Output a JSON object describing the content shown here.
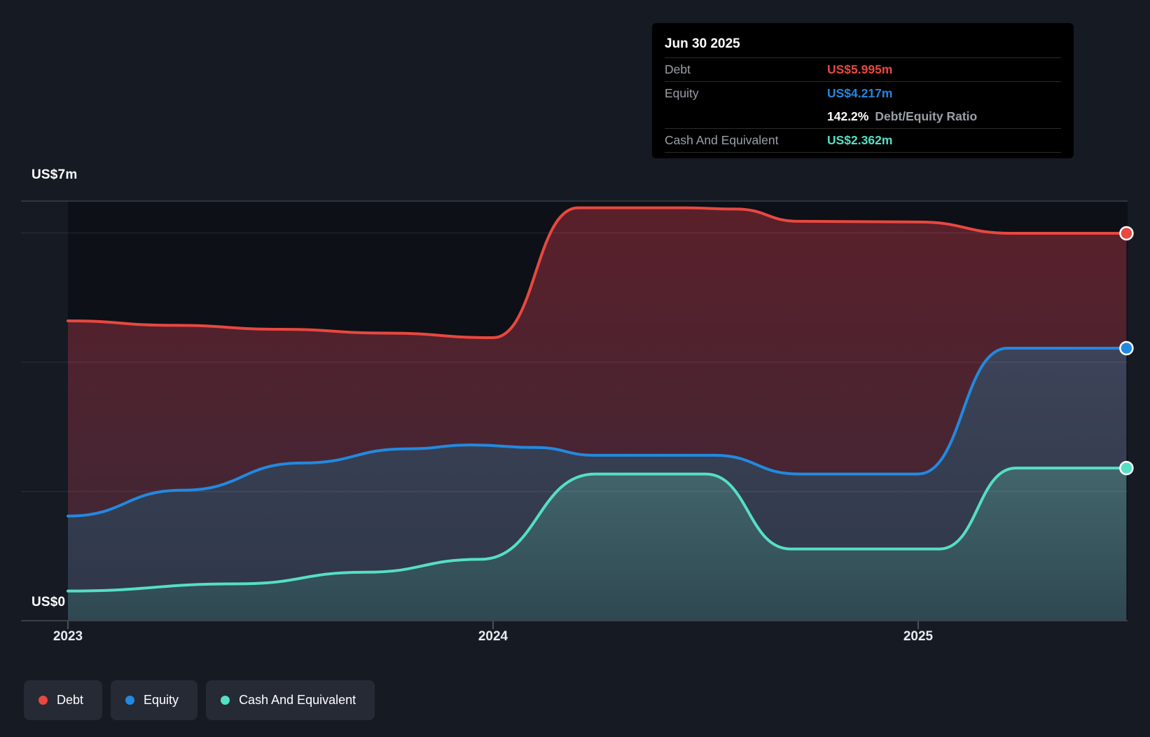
{
  "tooltip": {
    "date": "Jun 30 2025",
    "debt_label": "Debt",
    "debt_value": "US$5.995m",
    "equity_label": "Equity",
    "equity_value": "US$4.217m",
    "ratio_value": "142.2%",
    "ratio_label": "Debt/Equity Ratio",
    "cash_label": "Cash And Equivalent",
    "cash_value": "US$2.362m"
  },
  "y_axis": {
    "top_label": "US$7m",
    "bottom_label": "US$0"
  },
  "x_axis": {
    "ticks": [
      "2023",
      "2024",
      "2025"
    ]
  },
  "legend": [
    {
      "label": "Debt",
      "color": "#e8483f"
    },
    {
      "label": "Equity",
      "color": "#2389e0"
    },
    {
      "label": "Cash And Equivalent",
      "color": "#55dfc5"
    }
  ],
  "colors": {
    "page_bg": "#151a23",
    "plot_bg": "#0d1016",
    "grid": "rgba(255,255,255,0.07)",
    "frame": "#3a4049",
    "tick": "#4a505c",
    "debt": "#e8483f",
    "equity": "#2389e0",
    "cash": "#55dfc5",
    "marker_stroke": "#ffffff"
  },
  "chart_data": {
    "type": "area",
    "title": "",
    "x_unit": "year",
    "x_range": [
      2023.0,
      2025.49
    ],
    "x_tick_values": [
      2023,
      2024,
      2025
    ],
    "y_unit": "US$ millions",
    "ylim": [
      0,
      7
    ],
    "gridline_values_m": [
      2,
      4,
      6
    ],
    "grid": true,
    "legend_position": "bottom-left",
    "last_point_date": "Jun 30 2025",
    "debt_equity_ratio_pct": 142.2,
    "series": [
      {
        "name": "Debt",
        "color": "#e8483f",
        "band_top": "#5a202a",
        "band_bottom": "#432634",
        "last_value_m": 5.995,
        "points": [
          [
            2023.0,
            4.64
          ],
          [
            2023.25,
            4.57
          ],
          [
            2023.5,
            4.51
          ],
          [
            2023.75,
            4.45
          ],
          [
            2024.0,
            4.38
          ],
          [
            2024.2,
            6.39
          ],
          [
            2024.45,
            6.39
          ],
          [
            2024.57,
            6.37
          ],
          [
            2024.72,
            6.18
          ],
          [
            2025.0,
            6.17
          ],
          [
            2025.22,
            5.995
          ],
          [
            2025.49,
            5.995
          ]
        ]
      },
      {
        "name": "Equity",
        "color": "#2389e0",
        "band_top": "#3d4459",
        "band_bottom": "#2e3648",
        "last_value_m": 4.217,
        "points": [
          [
            2023.0,
            1.62
          ],
          [
            2023.27,
            2.02
          ],
          [
            2023.55,
            2.44
          ],
          [
            2023.8,
            2.66
          ],
          [
            2023.95,
            2.72
          ],
          [
            2024.1,
            2.68
          ],
          [
            2024.24,
            2.56
          ],
          [
            2024.52,
            2.56
          ],
          [
            2024.72,
            2.27
          ],
          [
            2025.0,
            2.27
          ],
          [
            2025.21,
            4.217
          ],
          [
            2025.49,
            4.217
          ]
        ]
      },
      {
        "name": "Cash And Equivalent",
        "color": "#55dfc5",
        "band_top": "#45696f",
        "band_bottom": "#2f4852",
        "last_value_m": 2.362,
        "points": [
          [
            2023.0,
            0.46
          ],
          [
            2023.4,
            0.57
          ],
          [
            2023.7,
            0.75
          ],
          [
            2023.97,
            0.95
          ],
          [
            2024.24,
            2.27
          ],
          [
            2024.5,
            2.27
          ],
          [
            2024.7,
            1.11
          ],
          [
            2025.05,
            1.11
          ],
          [
            2025.23,
            2.362
          ],
          [
            2025.49,
            2.362
          ]
        ]
      }
    ]
  }
}
